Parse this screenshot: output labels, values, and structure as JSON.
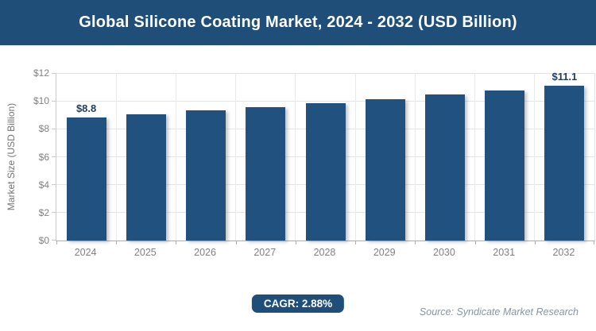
{
  "header": {
    "title": "Global Silicone Coating Market, 2024 - 2032 (USD Billion)"
  },
  "chart_data": {
    "type": "bar",
    "title": "Global Silicone Coating Market, 2024 - 2032 (USD Billion)",
    "categories": [
      "2024",
      "2025",
      "2026",
      "2027",
      "2028",
      "2029",
      "2030",
      "2031",
      "2032"
    ],
    "values": [
      8.8,
      9.05,
      9.31,
      9.58,
      9.86,
      10.15,
      10.44,
      10.74,
      11.1
    ],
    "labeled_points": [
      {
        "category": "2024",
        "label": "$8.8"
      },
      {
        "category": "2032",
        "label": "$11.1"
      }
    ],
    "xlabel": "",
    "ylabel": "Market Size (USD Billion)",
    "ylim": [
      0,
      12
    ],
    "ytick_step": 2,
    "ytick_labels": [
      "$0",
      "$2",
      "$4",
      "$6",
      "$8",
      "$10",
      "$12"
    ],
    "grid": true,
    "legend": "none",
    "bar_color": "#21517E"
  },
  "footer": {
    "cagr_label": "CAGR: 2.88%",
    "source": "Source: Syndicate Market Research"
  },
  "colors": {
    "title_bar_bg": "#1F4E79",
    "title_text": "#FFFFFF",
    "bar_fill": "#21517E",
    "data_label_text": "#1F3C5F",
    "axis_tick_text": "#7F7F7F",
    "grid_line": "#E4E4E4",
    "axis_line": "#ADADAD",
    "badge_bg": "#1F4E79",
    "source_text": "#8894A1"
  }
}
